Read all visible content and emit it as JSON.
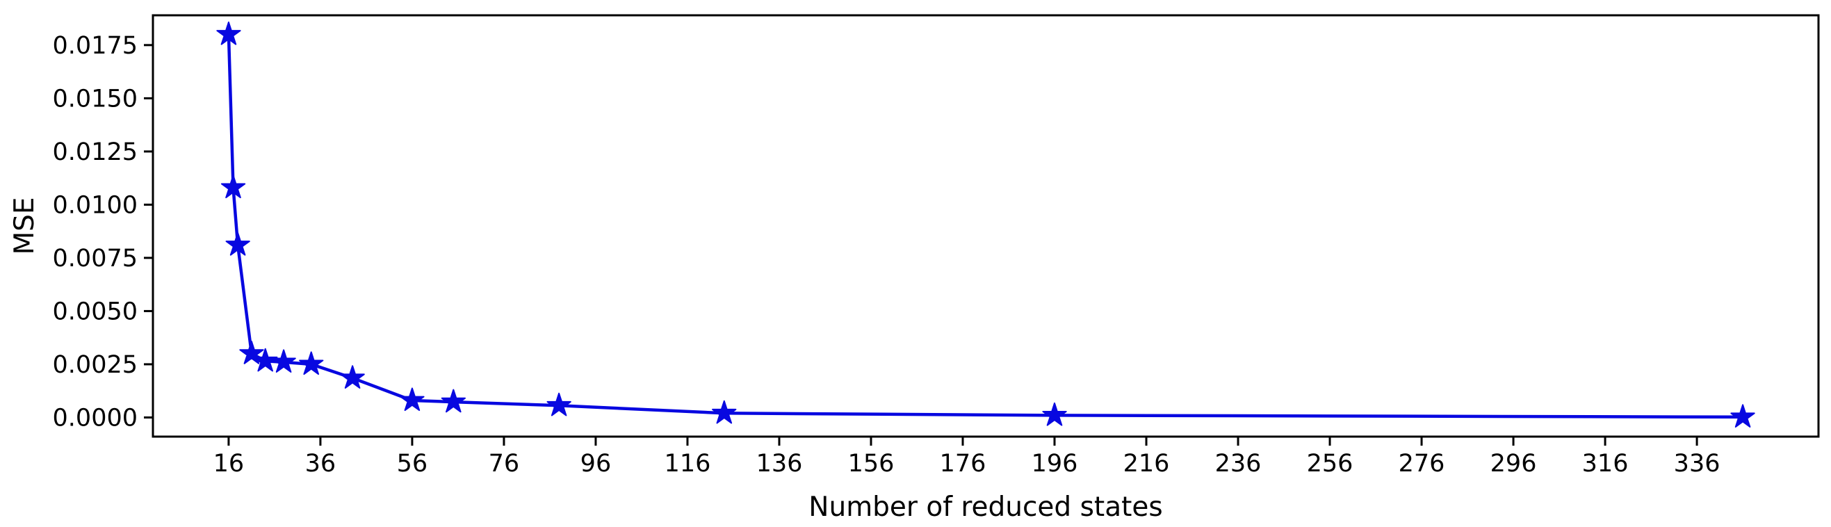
{
  "chart_data": {
    "type": "line",
    "title": "",
    "xlabel": "Number of reduced states",
    "ylabel": "MSE",
    "grid": false,
    "x": [
      16,
      17,
      18,
      21,
      24,
      28,
      34,
      43,
      56,
      65,
      88,
      124,
      196,
      346
    ],
    "y": [
      0.018,
      0.0108,
      0.0081,
      0.003,
      0.00265,
      0.0026,
      0.0025,
      0.00185,
      0.0008,
      0.00073,
      0.00056,
      0.0002,
      0.0001,
      2e-05
    ],
    "series_name": "MSE",
    "line_color": "#0808e0",
    "marker": "star",
    "xlim": [
      -0.5,
      362.5
    ],
    "ylim": [
      -0.0009,
      0.0189
    ],
    "x_ticks": [
      16,
      36,
      56,
      76,
      96,
      116,
      136,
      156,
      176,
      196,
      216,
      236,
      256,
      276,
      296,
      316,
      336
    ],
    "y_ticks": [
      {
        "value": 0.0,
        "label": "0.0000"
      },
      {
        "value": 0.0025,
        "label": "0.0025"
      },
      {
        "value": 0.005,
        "label": "0.0050"
      },
      {
        "value": 0.0075,
        "label": "0.0075"
      },
      {
        "value": 0.01,
        "label": "0.0100"
      },
      {
        "value": 0.0125,
        "label": "0.0125"
      },
      {
        "value": 0.015,
        "label": "0.0150"
      },
      {
        "value": 0.0175,
        "label": "0.0175"
      }
    ],
    "axis_color": "#000000"
  }
}
